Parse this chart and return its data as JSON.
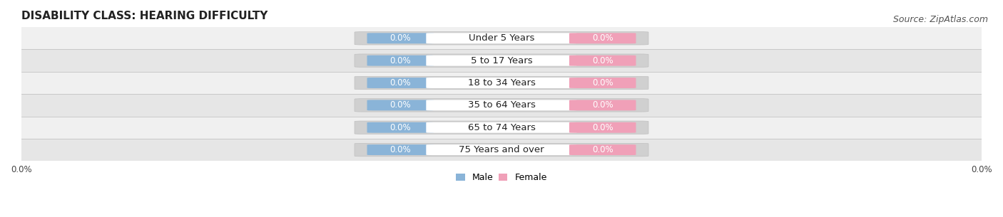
{
  "title": "DISABILITY CLASS: HEARING DIFFICULTY",
  "source": "Source: ZipAtlas.com",
  "categories": [
    "Under 5 Years",
    "5 to 17 Years",
    "18 to 34 Years",
    "35 to 64 Years",
    "65 to 74 Years",
    "75 Years and over"
  ],
  "male_values": [
    0.0,
    0.0,
    0.0,
    0.0,
    0.0,
    0.0
  ],
  "female_values": [
    0.0,
    0.0,
    0.0,
    0.0,
    0.0,
    0.0
  ],
  "male_color": "#8ab4d8",
  "female_color": "#f0a0b8",
  "row_bg_odd": "#f0f0f0",
  "row_bg_even": "#e6e6e6",
  "bar_bg_color": "#d8d8d8",
  "label_value_color": "white",
  "category_color": "#222222",
  "title_fontsize": 11,
  "source_fontsize": 9,
  "value_fontsize": 8.5,
  "category_fontsize": 9.5,
  "legend_fontsize": 9,
  "tick_fontsize": 8.5,
  "background_color": "#ffffff"
}
